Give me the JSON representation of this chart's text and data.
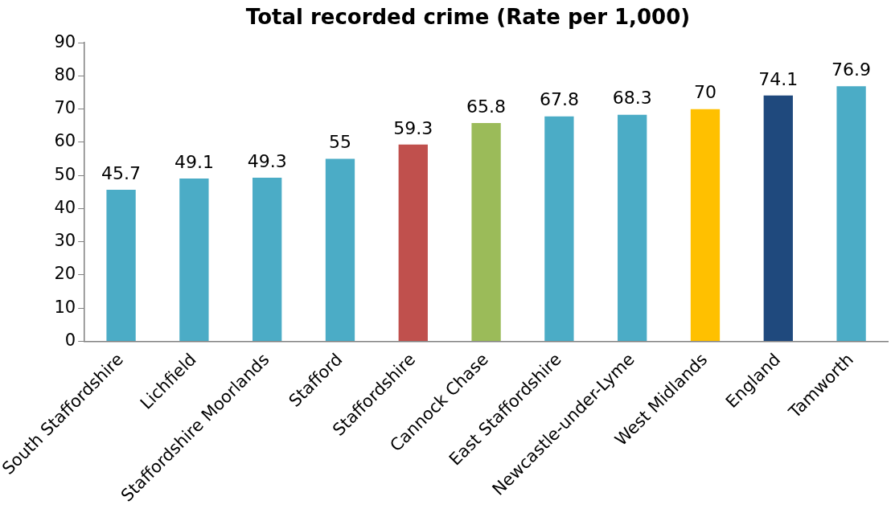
{
  "chart_data": {
    "type": "bar",
    "title": "Total recorded crime (Rate per 1,000)",
    "categories": [
      "South Staffordshire",
      "Lichfield",
      "Staffordshire Moorlands",
      "Stafford",
      "Staffordshire",
      "Cannock Chase",
      "East Staffordshire",
      "Newcastle-under-Lyme",
      "West Midlands",
      "England",
      "Tamworth"
    ],
    "values": [
      45.7,
      49.1,
      49.3,
      55,
      59.3,
      65.8,
      67.8,
      68.3,
      70,
      74.1,
      76.9
    ],
    "colors": [
      "#4bacc6",
      "#4bacc6",
      "#4bacc6",
      "#4bacc6",
      "#c0504d",
      "#9bbb59",
      "#4bacc6",
      "#4bacc6",
      "#ffc000",
      "#1f497d",
      "#4bacc6"
    ],
    "ylim": [
      0,
      90
    ],
    "yticks": [
      0,
      10,
      20,
      30,
      40,
      50,
      60,
      70,
      80,
      90
    ],
    "grid": false,
    "legend": false,
    "data_labels": true
  }
}
